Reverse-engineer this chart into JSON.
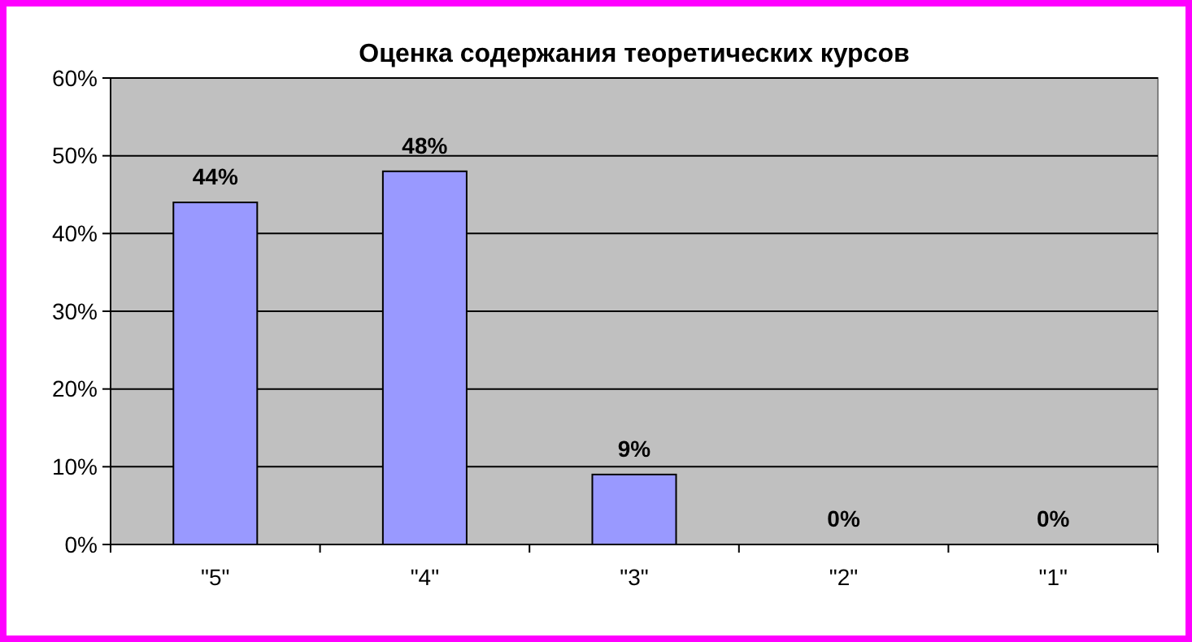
{
  "chart_data": {
    "type": "bar",
    "title": "Оценка содержания теоретических курсов",
    "categories": [
      "\"5\"",
      "\"4\"",
      "\"3\"",
      "\"2\"",
      "\"1\""
    ],
    "values": [
      44,
      48,
      9,
      0,
      0
    ],
    "value_labels": [
      "44%",
      "48%",
      "9%",
      "0%",
      "0%"
    ],
    "color": "#9999ff",
    "ylim": [
      0,
      60
    ],
    "yticks": [
      {
        "value": 0,
        "label": "0%"
      },
      {
        "value": 10,
        "label": "10%"
      },
      {
        "value": 20,
        "label": "20%"
      },
      {
        "value": 30,
        "label": "30%"
      },
      {
        "value": 40,
        "label": "40%"
      },
      {
        "value": 50,
        "label": "50%"
      },
      {
        "value": 60,
        "label": "60%"
      }
    ],
    "grid": "y"
  }
}
